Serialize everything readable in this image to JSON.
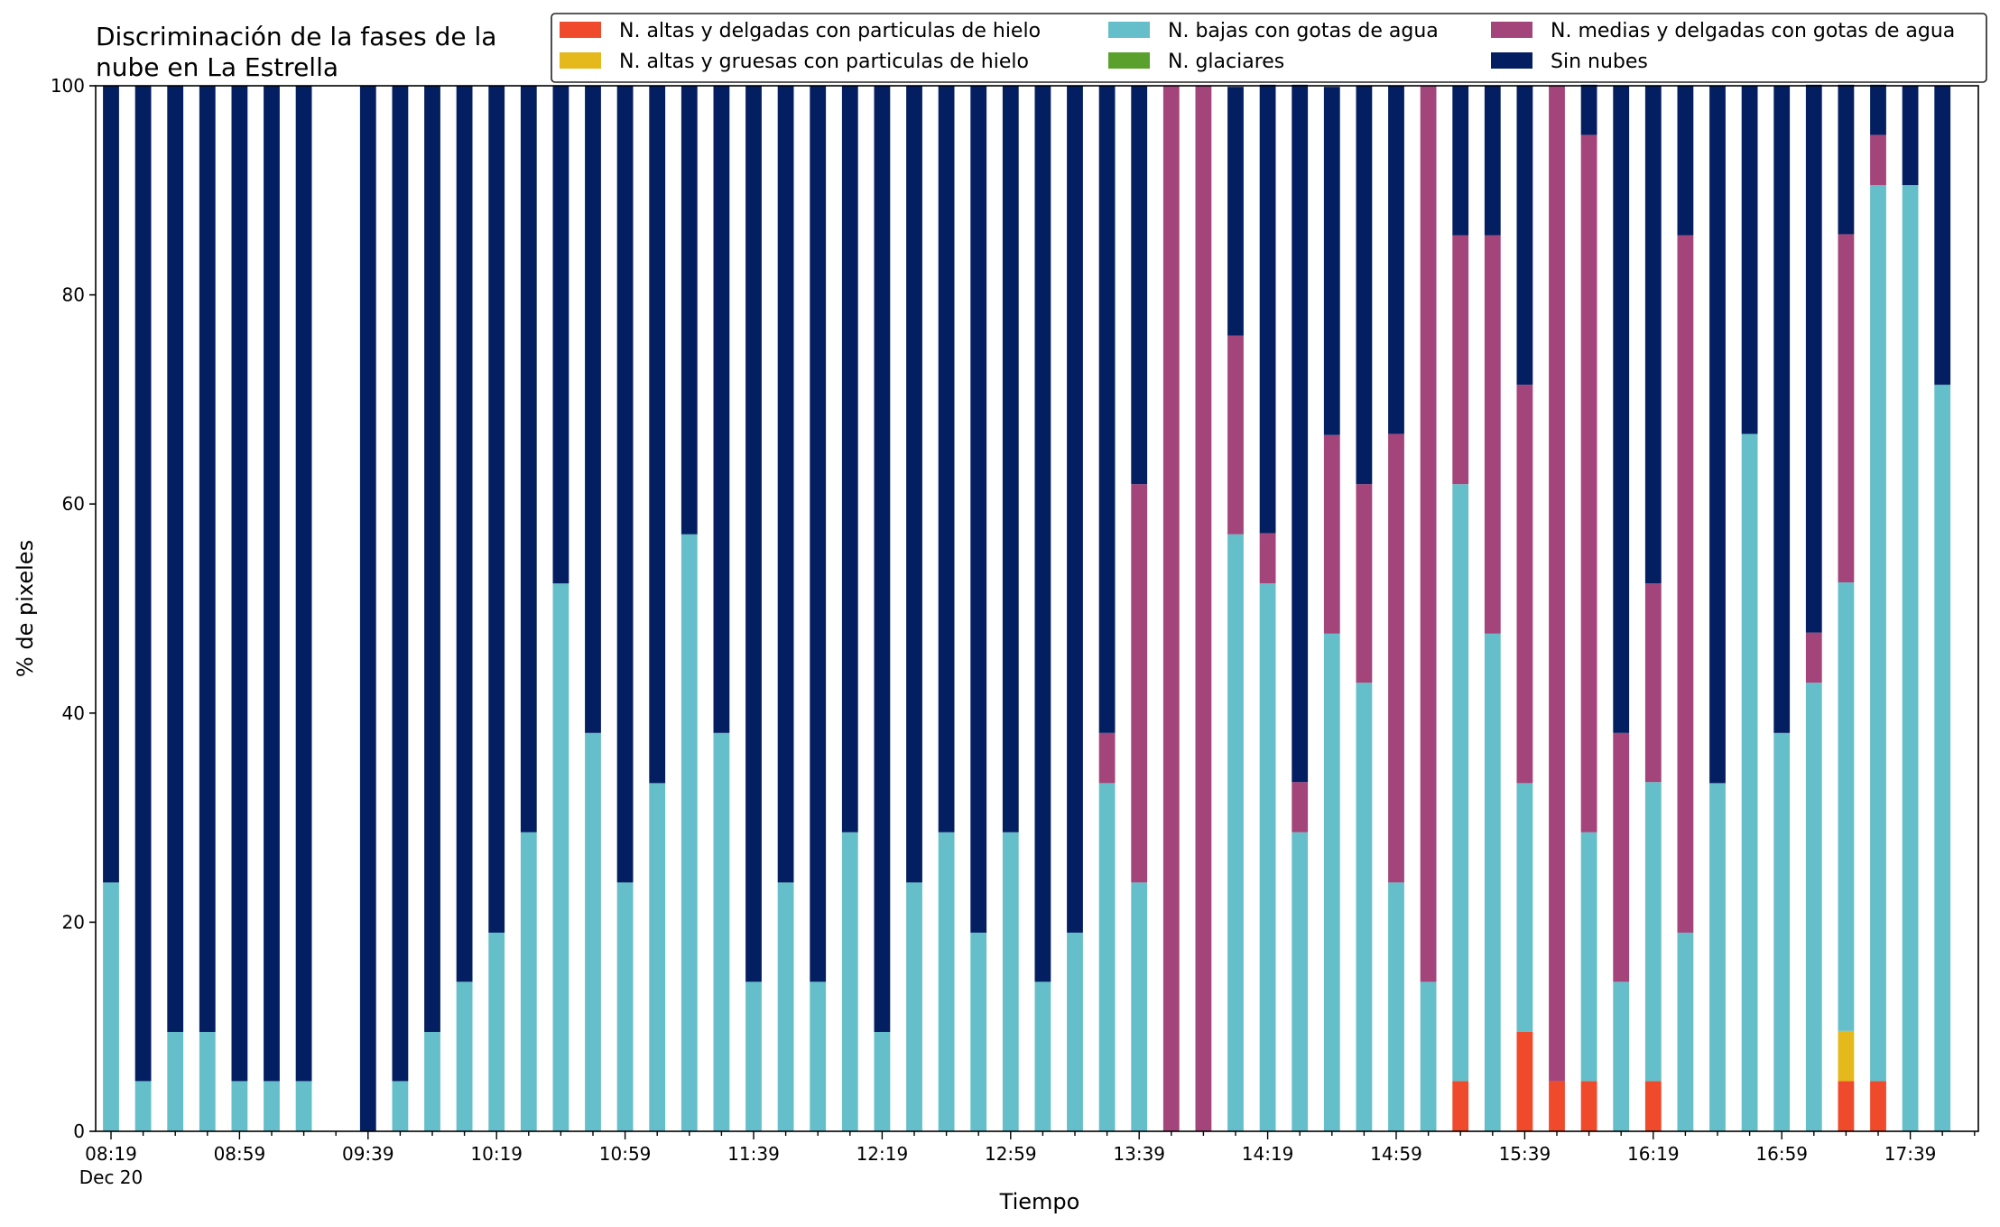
{
  "chart_data": {
    "type": "bar",
    "stacked": true,
    "title_lines": [
      "Discriminación de la fases de la",
      "nube en La Estrella"
    ],
    "xlabel": "Tiempo",
    "ylabel": "% de pixeles",
    "ylim": [
      0,
      100
    ],
    "yticks": [
      "0",
      "20",
      "40",
      "60",
      "80",
      "100"
    ],
    "xtick_labels": [
      "08:19",
      "08:59",
      "09:39",
      "10:19",
      "10:59",
      "11:39",
      "12:19",
      "12:59",
      "13:39",
      "14:19",
      "14:59",
      "15:39",
      "16:19",
      "16:59",
      "17:39"
    ],
    "xtick_date": "Dec 20",
    "grid": false,
    "legend_position": "top",
    "categories": [
      "08:19",
      "08:29",
      "08:39",
      "08:49",
      "08:59",
      "09:09",
      "09:19",
      "09:29",
      "09:39",
      "09:49",
      "09:59",
      "10:09",
      "10:19",
      "10:29",
      "10:39",
      "10:49",
      "10:59",
      "11:09",
      "11:19",
      "11:29",
      "11:39",
      "11:49",
      "11:59",
      "12:09",
      "12:19",
      "12:29",
      "12:39",
      "12:49",
      "12:59",
      "13:09",
      "13:19",
      "13:29",
      "13:39",
      "13:49",
      "13:59",
      "14:09",
      "14:19",
      "14:29",
      "14:39",
      "14:49",
      "14:59",
      "15:09",
      "15:19",
      "15:29",
      "15:39",
      "15:49",
      "15:59",
      "16:09",
      "16:19",
      "16:29",
      "16:39",
      "16:49",
      "16:59",
      "17:09",
      "17:19",
      "17:29",
      "17:39",
      "17:49"
    ],
    "series": [
      {
        "name": "N. altas y delgadas con particulas de hielo",
        "color": "#f04a2c",
        "values": [
          0,
          0,
          0,
          0,
          0,
          0,
          0,
          0,
          0,
          0,
          0,
          0,
          0,
          0,
          0,
          0,
          0,
          0,
          0,
          0,
          0,
          0,
          0,
          0,
          0,
          0,
          0,
          0,
          0,
          0,
          0,
          0,
          0,
          0,
          0,
          0,
          0,
          0,
          0,
          0,
          0,
          0,
          4.8,
          0,
          9.5,
          4.8,
          4.8,
          0,
          4.8,
          0,
          0,
          0,
          0,
          0,
          4.8,
          4.8,
          0,
          0
        ]
      },
      {
        "name": "N. altas y gruesas con particulas de hielo",
        "color": "#e5b81c",
        "values": [
          0,
          0,
          0,
          0,
          0,
          0,
          0,
          0,
          0,
          0,
          0,
          0,
          0,
          0,
          0,
          0,
          0,
          0,
          0,
          0,
          0,
          0,
          0,
          0,
          0,
          0,
          0,
          0,
          0,
          0,
          0,
          0,
          0,
          0,
          0,
          0,
          0,
          0,
          0,
          0,
          0,
          0,
          0,
          0,
          0,
          0,
          0,
          0,
          0,
          0,
          0,
          0,
          0,
          0,
          4.8,
          0,
          0,
          0
        ]
      },
      {
        "name": "N. bajas con gotas de agua",
        "color": "#65bfca",
        "values": [
          23.8,
          4.8,
          9.5,
          9.5,
          4.8,
          4.8,
          4.8,
          0,
          0,
          4.8,
          9.5,
          14.3,
          19.0,
          28.6,
          52.4,
          38.1,
          23.8,
          33.3,
          57.1,
          38.1,
          14.3,
          23.8,
          14.3,
          28.6,
          9.5,
          23.8,
          28.6,
          19.0,
          28.6,
          14.3,
          19.0,
          33.3,
          23.8,
          0,
          0,
          57.1,
          52.4,
          28.6,
          47.6,
          42.9,
          23.8,
          14.3,
          57.1,
          47.6,
          23.8,
          0,
          23.8,
          14.3,
          28.6,
          19.0,
          33.3,
          66.7,
          38.1,
          42.9,
          42.9,
          85.7,
          90.5,
          71.4
        ]
      },
      {
        "name": "N. glaciares",
        "color": "#5aa02c",
        "values": [
          0,
          0,
          0,
          0,
          0,
          0,
          0,
          0,
          0,
          0,
          0,
          0,
          0,
          0,
          0,
          0,
          0,
          0,
          0,
          0,
          0,
          0,
          0,
          0,
          0,
          0,
          0,
          0,
          0,
          0,
          0,
          0,
          0,
          0,
          0,
          0,
          0,
          0,
          0,
          0,
          0,
          0,
          0,
          0,
          0,
          0,
          0,
          0,
          0,
          0,
          0,
          0,
          0,
          0,
          0,
          0,
          0,
          0
        ]
      },
      {
        "name": "N. medias y delgadas con gotas de agua",
        "color": "#a3457a",
        "values": [
          0,
          0,
          0,
          0,
          0,
          0,
          0,
          0,
          0,
          0,
          0,
          0,
          0,
          0,
          0,
          0,
          0,
          0,
          0,
          0,
          0,
          0,
          0,
          0,
          0,
          0,
          0,
          0,
          0,
          0,
          0,
          4.8,
          38.1,
          100,
          100,
          19.0,
          4.8,
          4.8,
          19.0,
          19.0,
          42.9,
          85.7,
          23.8,
          38.1,
          38.1,
          95.2,
          66.7,
          23.8,
          19.0,
          66.7,
          0,
          0,
          0,
          4.8,
          33.3,
          4.8,
          0,
          0
        ]
      },
      {
        "name": "Sin nubes",
        "color": "#041f61",
        "values": [
          76.2,
          95.2,
          90.5,
          90.5,
          95.2,
          95.2,
          95.2,
          0,
          100,
          95.2,
          90.5,
          85.7,
          81.0,
          71.4,
          47.6,
          61.9,
          76.2,
          66.7,
          42.9,
          61.9,
          85.7,
          76.2,
          85.7,
          71.4,
          90.5,
          76.2,
          71.4,
          81.0,
          71.4,
          85.7,
          81.0,
          61.9,
          38.1,
          0,
          0,
          23.8,
          42.9,
          66.7,
          33.3,
          38.1,
          33.3,
          0,
          14.3,
          14.3,
          28.6,
          0,
          4.8,
          61.9,
          47.6,
          14.3,
          66.7,
          33.3,
          61.9,
          52.4,
          14.3,
          4.8,
          9.5,
          28.6
        ]
      }
    ]
  }
}
